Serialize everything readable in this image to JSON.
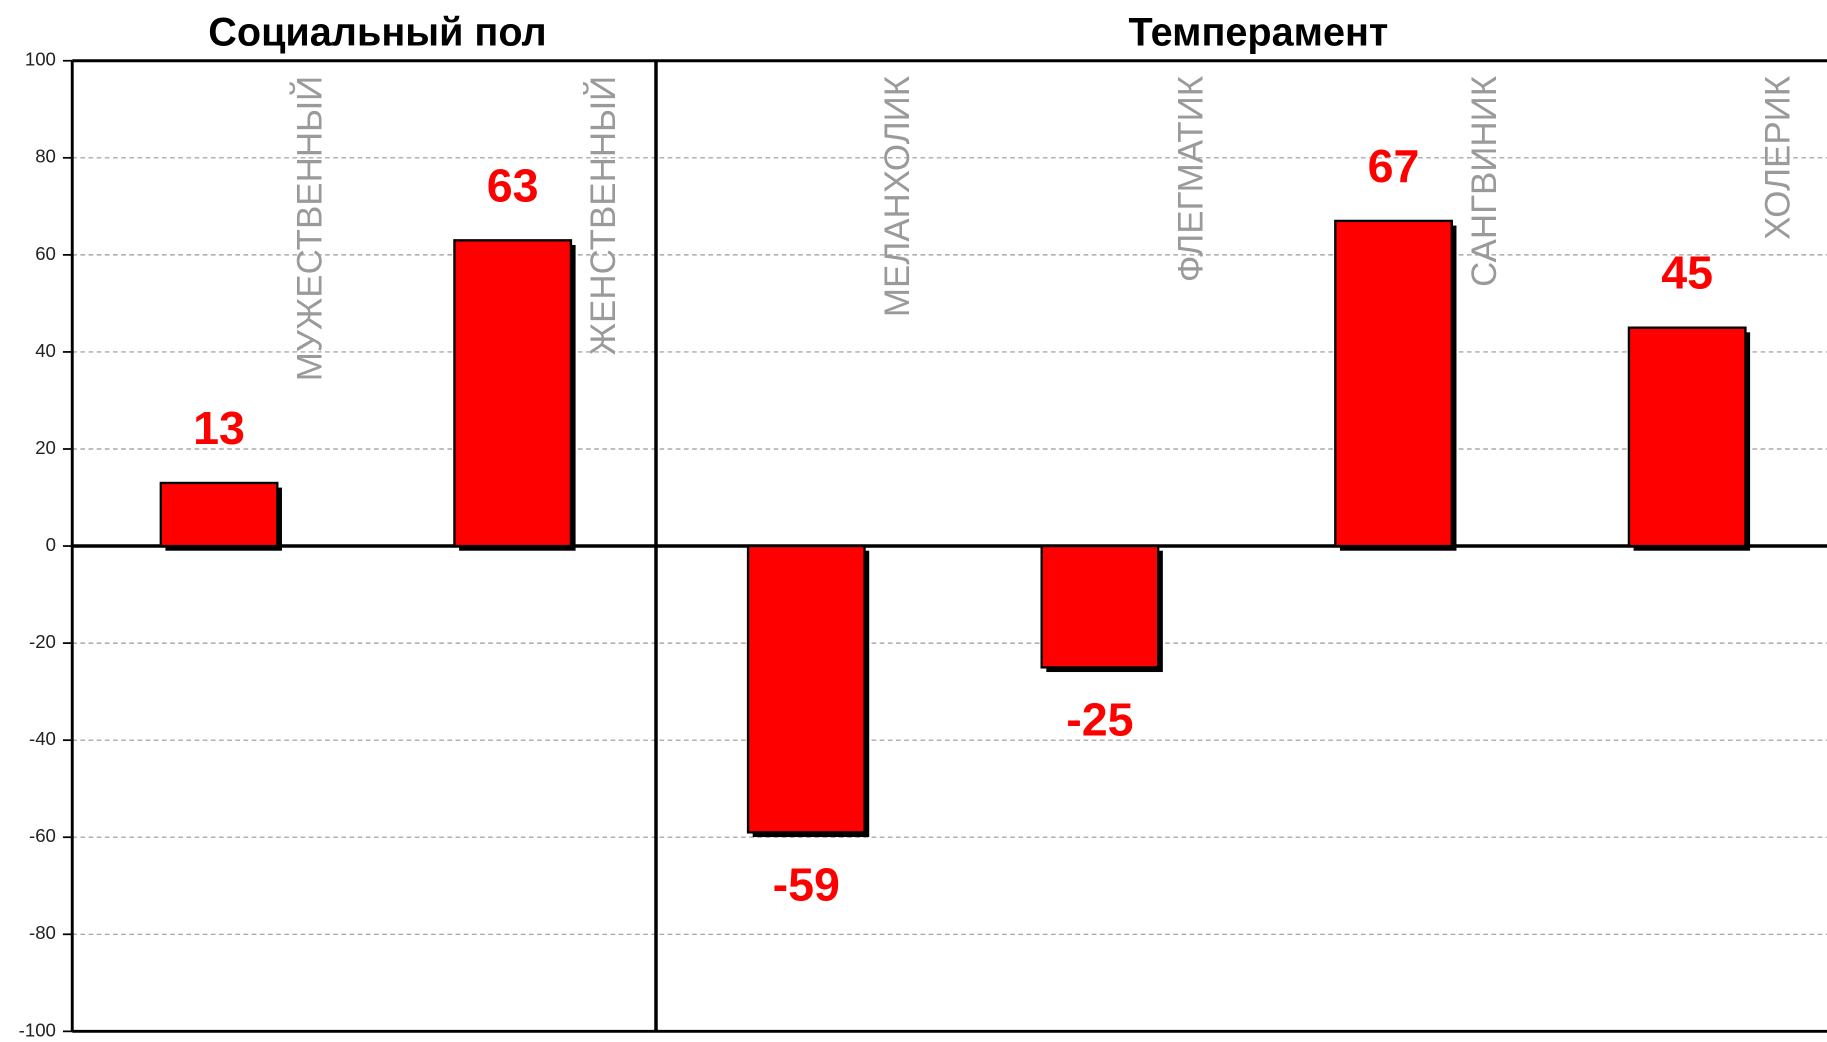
{
  "chart_data": {
    "type": "bar",
    "groups": [
      {
        "title": "Социальный пол",
        "categories": [
          "МУЖЕСТВЕННЫЙ",
          "ЖЕНСТВЕННЫЙ"
        ],
        "values": [
          13,
          63
        ]
      },
      {
        "title": "Темперамент",
        "categories": [
          "МЕЛАНХОЛИК",
          "ФЛЕГМАТИК",
          "САНГВИНИК",
          "ХОЛЕРИК"
        ],
        "values": [
          -59,
          -25,
          67,
          45
        ]
      }
    ],
    "color": "#ff0000",
    "ylim": [
      -100,
      100
    ],
    "yticks": [
      -100,
      -80,
      -60,
      -40,
      -20,
      0,
      20,
      40,
      60,
      80,
      100
    ],
    "grid": true
  }
}
